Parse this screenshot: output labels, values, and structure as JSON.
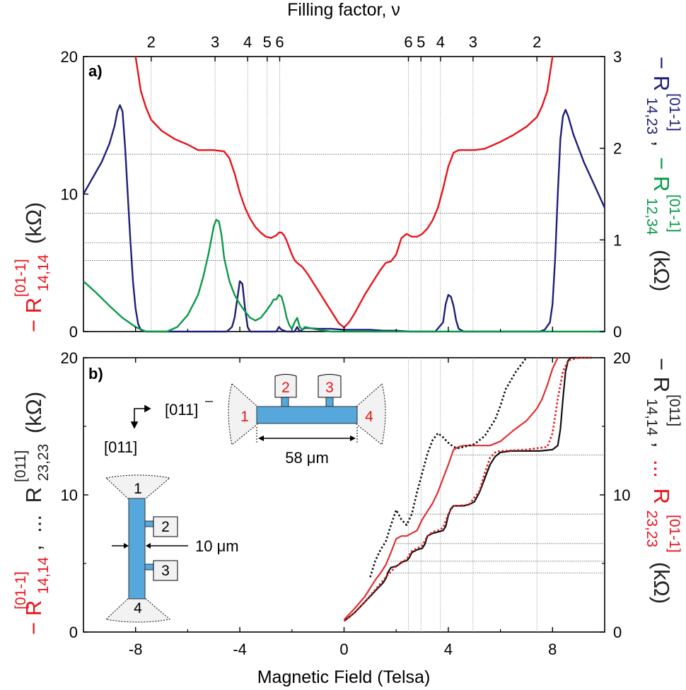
{
  "chart_data": [
    {
      "panel": "a",
      "type": "line",
      "panel_label": "a)",
      "top_axis_label": "Filling factor, ν",
      "top_ticks": [
        {
          "B": -7.4,
          "label": "2"
        },
        {
          "B": -4.95,
          "label": "3"
        },
        {
          "B": -3.7,
          "label": "4"
        },
        {
          "B": -2.95,
          "label": "5"
        },
        {
          "B": -2.47,
          "label": "6"
        },
        {
          "B": 2.47,
          "label": "6"
        },
        {
          "B": 2.95,
          "label": "5"
        },
        {
          "B": 3.7,
          "label": "4"
        },
        {
          "B": 4.95,
          "label": "3"
        },
        {
          "B": 7.4,
          "label": "2"
        }
      ],
      "xlim": [
        -10,
        10
      ],
      "ylim_left": [
        0,
        20
      ],
      "ylim_right": [
        0,
        3
      ],
      "left_ticks": [
        "0",
        "10",
        "20"
      ],
      "right_ticks": [
        "0",
        "1",
        "2",
        "3"
      ],
      "ylabel_left": {
        "prefix": "− R",
        "sup": "[01-1]",
        "sub": "14,14",
        "unit": "(kΩ)"
      },
      "ylabel_right": {
        "r1": "− R",
        "sup1": "[01-1]",
        "sub1": "14,23",
        "sep": ",",
        "r2": "− R",
        "sup2": "[01-1]",
        "sub2": "12,34",
        "unit": "(kΩ)"
      },
      "hgrid_left": [
        12.9,
        8.6,
        6.45,
        5.16
      ],
      "series": [
        {
          "name": "-R14,14 [01-1]",
          "color": "#e8141b",
          "axis": "left",
          "x": [
            -8.0,
            -7.8,
            -7.6,
            -7.4,
            -7.0,
            -6.5,
            -6.0,
            -5.6,
            -5.0,
            -4.6,
            -4.4,
            -4.2,
            -4.0,
            -3.8,
            -3.6,
            -3.4,
            -3.2,
            -3.0,
            -2.8,
            -2.6,
            -2.5,
            -2.4,
            -2.3,
            -2.2,
            -2.1,
            -2.0,
            -1.9,
            -1.8,
            -1.6,
            -1.4,
            -1.2,
            -1.0,
            -0.8,
            -0.6,
            -0.4,
            -0.2,
            0,
            0.2,
            0.4,
            0.6,
            0.8,
            1.0,
            1.2,
            1.4,
            1.6,
            1.8,
            2.0,
            2.2,
            2.4,
            2.6,
            2.8,
            3.0,
            3.2,
            3.4,
            3.6,
            3.8,
            4.0,
            4.2,
            4.4,
            4.6,
            5.0,
            5.4,
            6.0,
            6.5,
            7.0,
            7.4,
            7.6,
            7.8,
            8.0
          ],
          "y": [
            20,
            17.5,
            16.3,
            15.4,
            14.6,
            14.0,
            13.6,
            13.2,
            13.2,
            13.1,
            12.6,
            11.5,
            10.1,
            9.0,
            8.2,
            7.6,
            7.2,
            6.9,
            6.8,
            7.0,
            7.2,
            7.2,
            7.0,
            6.6,
            6.1,
            5.6,
            5.2,
            5.0,
            4.7,
            4.2,
            3.6,
            3.0,
            2.4,
            1.8,
            1.2,
            0.6,
            0.3,
            0.7,
            1.3,
            2.0,
            2.7,
            3.3,
            3.9,
            4.5,
            5.0,
            5.1,
            5.6,
            6.8,
            7.1,
            6.9,
            6.9,
            7.1,
            7.5,
            8.1,
            9.0,
            10.4,
            12.0,
            13.0,
            13.2,
            13.2,
            13.2,
            13.3,
            13.8,
            14.3,
            14.9,
            15.6,
            16.4,
            17.5,
            20
          ]
        },
        {
          "name": "-R14,23 [01-1]",
          "color": "#1f1f7a",
          "axis": "right",
          "x": [
            -10,
            -9.6,
            -9.3,
            -9.0,
            -8.8,
            -8.7,
            -8.6,
            -8.5,
            -8.4,
            -8.3,
            -8.2,
            -8.1,
            -8.0,
            -7.9,
            -7.8,
            -7.6,
            -7.0,
            -6.0,
            -5.0,
            -4.5,
            -4.3,
            -4.2,
            -4.1,
            -4.0,
            -3.9,
            -3.8,
            -3.7,
            -3.6,
            -3.0,
            -2.6,
            -2.5,
            -2.4,
            -2.2,
            -1.9,
            -1.8,
            -1.7,
            -1.5,
            -1.0,
            -0.5,
            0,
            0.5,
            1.0,
            1.5,
            2.0,
            2.5,
            3.0,
            3.5,
            3.8,
            3.9,
            4.0,
            4.1,
            4.2,
            4.3,
            4.4,
            4.6,
            4.8,
            5.0,
            6.0,
            7.0,
            7.5,
            7.7,
            7.9,
            8.0,
            8.1,
            8.2,
            8.3,
            8.4,
            8.5,
            8.6,
            8.8,
            9.2,
            9.6,
            10
          ],
          "y": [
            1.5,
            1.7,
            1.85,
            2.05,
            2.25,
            2.4,
            2.47,
            2.4,
            2.0,
            1.5,
            1.0,
            0.55,
            0.25,
            0.08,
            0.02,
            0.0,
            0.0,
            0.0,
            0.0,
            0.0,
            0.05,
            0.15,
            0.35,
            0.55,
            0.52,
            0.25,
            0.05,
            0.0,
            0.0,
            0.0,
            0.05,
            0.02,
            0.0,
            0.0,
            0.05,
            0.0,
            0.04,
            0.03,
            0.03,
            0.02,
            0.02,
            0.02,
            0.01,
            0.01,
            0.0,
            0.0,
            0.0,
            0.1,
            0.3,
            0.4,
            0.38,
            0.28,
            0.12,
            0.03,
            0.0,
            0.0,
            0.0,
            0.0,
            0.0,
            0.0,
            0.02,
            0.1,
            0.3,
            0.8,
            1.5,
            2.1,
            2.35,
            2.42,
            2.35,
            2.15,
            1.85,
            1.6,
            1.35
          ]
        },
        {
          "name": "-R12,34 [01-1]",
          "color": "#0a9a47",
          "axis": "right",
          "x": [
            -10,
            -9.5,
            -9.0,
            -8.5,
            -8.0,
            -7.6,
            -7.2,
            -6.8,
            -6.4,
            -6.0,
            -5.6,
            -5.4,
            -5.2,
            -5.0,
            -4.9,
            -4.8,
            -4.7,
            -4.6,
            -4.4,
            -4.2,
            -4.0,
            -3.8,
            -3.6,
            -3.4,
            -3.2,
            -3.0,
            -2.8,
            -2.7,
            -2.6,
            -2.5,
            -2.4,
            -2.3,
            -2.2,
            -2.1,
            -2.0,
            -1.9,
            -1.8,
            -1.7,
            -1.6,
            -1.5,
            -1.0,
            -0.5,
            0,
            2,
            4,
            6,
            8,
            10
          ],
          "y": [
            0.55,
            0.42,
            0.28,
            0.15,
            0.05,
            0.0,
            0.0,
            0.0,
            0.05,
            0.18,
            0.4,
            0.6,
            0.85,
            1.15,
            1.22,
            1.2,
            1.05,
            0.8,
            0.55,
            0.4,
            0.3,
            0.22,
            0.15,
            0.12,
            0.15,
            0.22,
            0.3,
            0.35,
            0.35,
            0.4,
            0.38,
            0.28,
            0.15,
            0.07,
            0.03,
            0.1,
            0.15,
            0.05,
            0.02,
            0.05,
            0.02,
            0.0,
            0.0,
            0.0,
            0.0,
            0.0,
            0.0,
            0.0
          ]
        }
      ]
    },
    {
      "panel": "b",
      "type": "line",
      "panel_label": "b)",
      "xlabel": "Magnetic Field (Telsa)",
      "xlim": [
        -10,
        10
      ],
      "xticks": [
        -8,
        -4,
        0,
        4,
        8
      ],
      "xtick_labels": [
        "-8",
        "-4",
        "0",
        "4",
        "8"
      ],
      "ylim_left": [
        0,
        20
      ],
      "ylim_right": [
        0,
        20
      ],
      "left_ticks": [
        "0",
        "10",
        "20"
      ],
      "right_ticks": [
        "0",
        "10",
        "20"
      ],
      "ylabel_left": {
        "r1": "− R",
        "sup1": "[01-1]",
        "sub1": "14,14",
        "sep": ",",
        "dots": "...",
        "r2": "R",
        "sup2": "[011]",
        "sub2": "23,23",
        "unit": "(kΩ)"
      },
      "ylabel_right": {
        "r1": "− R",
        "sup1": "[011]",
        "sub1": "14,14",
        "sep": ",",
        "dots": "...",
        "r2": "R",
        "sup2": "[01-1]",
        "sub2": "23,23",
        "unit": "(kΩ)"
      },
      "hgrid_b": [
        12.9,
        8.6,
        6.45,
        5.16,
        4.3
      ],
      "hgrid_b_xstart": [
        4.2,
        2.4,
        2.0,
        1.8,
        1.6
      ],
      "vgrid_b": [
        2.47,
        2.95,
        3.7,
        4.95,
        7.4
      ],
      "series": [
        {
          "name": "-R14,14 [011] solid black",
          "color": "#111111",
          "style": "solid",
          "x": [
            0,
            0.2,
            0.4,
            0.6,
            0.8,
            1.0,
            1.1,
            1.2,
            1.3,
            1.5,
            1.6,
            1.7,
            1.8,
            2.0,
            2.1,
            2.2,
            2.4,
            2.5,
            2.6,
            2.8,
            3.0,
            3.1,
            3.2,
            3.4,
            3.6,
            3.8,
            3.9,
            4.0,
            4.1,
            4.2,
            4.4,
            4.6,
            4.8,
            5.0,
            5.2,
            5.4,
            5.6,
            5.8,
            6.0,
            6.4,
            7.0,
            7.5,
            8.0,
            8.2,
            8.3,
            8.4,
            8.5,
            8.6,
            8.7,
            9.0,
            9.5
          ],
          "y": [
            0.8,
            1.1,
            1.4,
            1.8,
            2.2,
            2.6,
            2.8,
            3.0,
            3.2,
            3.6,
            3.9,
            4.4,
            4.7,
            4.8,
            4.9,
            5.1,
            5.2,
            5.4,
            5.8,
            6.0,
            6.1,
            6.4,
            7.0,
            7.2,
            7.3,
            7.4,
            7.7,
            8.5,
            9.0,
            9.2,
            9.2,
            9.2,
            9.3,
            9.5,
            10.2,
            11.2,
            12.2,
            12.8,
            13.1,
            13.2,
            13.2,
            13.2,
            13.3,
            13.6,
            14.8,
            17.0,
            19.0,
            19.8,
            20,
            20,
            20
          ]
        },
        {
          "name": "R23,23 [01-1] dotted red",
          "color": "#e8141b",
          "style": "dotted",
          "x": [
            0,
            0.4,
            0.8,
            1.2,
            1.6,
            2.0,
            2.4,
            2.6,
            2.8,
            3.0,
            3.2,
            3.4,
            3.6,
            3.8,
            4.0,
            4.2,
            4.4,
            4.8,
            5.2,
            5.4,
            5.6,
            5.8,
            6.0,
            7.0,
            7.8,
            8.0,
            8.2,
            8.4,
            8.6,
            9.0,
            9.5
          ],
          "y": [
            0.8,
            1.4,
            2.2,
            3.1,
            4.0,
            4.8,
            5.3,
            5.9,
            6.1,
            6.3,
            7.0,
            7.3,
            7.4,
            7.6,
            8.6,
            9.2,
            9.2,
            9.3,
            10.3,
            11.6,
            12.7,
            13.1,
            13.2,
            13.3,
            13.5,
            14.5,
            17.0,
            19.0,
            19.8,
            20,
            20
          ]
        },
        {
          "name": "-R14,14 [01-1] solid red",
          "color": "#e03030",
          "style": "solid",
          "x": [
            0,
            0.4,
            0.8,
            1.0,
            1.2,
            1.4,
            1.6,
            1.8,
            2.0,
            2.2,
            2.4,
            2.6,
            2.8,
            3.0,
            3.2,
            3.4,
            3.6,
            3.8,
            4.0,
            4.2,
            4.4,
            4.6,
            5.0,
            5.6,
            6.0,
            6.5,
            7.0,
            7.4,
            7.6,
            7.8,
            8.0,
            8.2
          ],
          "y": [
            0.9,
            1.7,
            2.6,
            3.2,
            3.8,
            4.3,
            4.9,
            5.8,
            6.8,
            7.0,
            7.0,
            7.2,
            7.4,
            8.2,
            8.8,
            9.4,
            10.2,
            11.2,
            12.2,
            13.3,
            13.5,
            13.6,
            13.6,
            13.6,
            13.9,
            14.7,
            15.4,
            16.3,
            17.0,
            18.0,
            19.2,
            20
          ]
        },
        {
          "name": "R23,23 [011] dotted black",
          "color": "#111111",
          "style": "dotted",
          "x": [
            1.0,
            1.2,
            1.4,
            1.6,
            1.8,
            2.0,
            2.2,
            2.4,
            2.6,
            2.8,
            3.0,
            3.2,
            3.4,
            3.6,
            3.8,
            4.0,
            4.2,
            4.4,
            4.6,
            5.0,
            5.4,
            5.8,
            6.0,
            6.2,
            6.6,
            7.0
          ],
          "y": [
            4.0,
            5.2,
            6.0,
            6.6,
            7.8,
            8.9,
            8.2,
            7.8,
            8.6,
            10.2,
            11.6,
            13.0,
            14.0,
            14.5,
            14.2,
            13.8,
            13.5,
            13.4,
            13.5,
            13.7,
            14.3,
            15.5,
            16.5,
            17.7,
            19.0,
            20
          ]
        }
      ]
    }
  ],
  "inset": {
    "device1": {
      "contacts": [
        "1",
        "2",
        "3",
        "4"
      ],
      "width_label": "10 μm",
      "axis_h": "[01 1̄ ]",
      "axis_v": "[011]"
    },
    "device2": {
      "contacts": [
        "1",
        "2",
        "3",
        "4"
      ],
      "length_label": "58 μm"
    },
    "colors": {
      "bar": "#56a8dc",
      "pad": "#f4f4f4",
      "contact_label": "#e8141b"
    }
  }
}
